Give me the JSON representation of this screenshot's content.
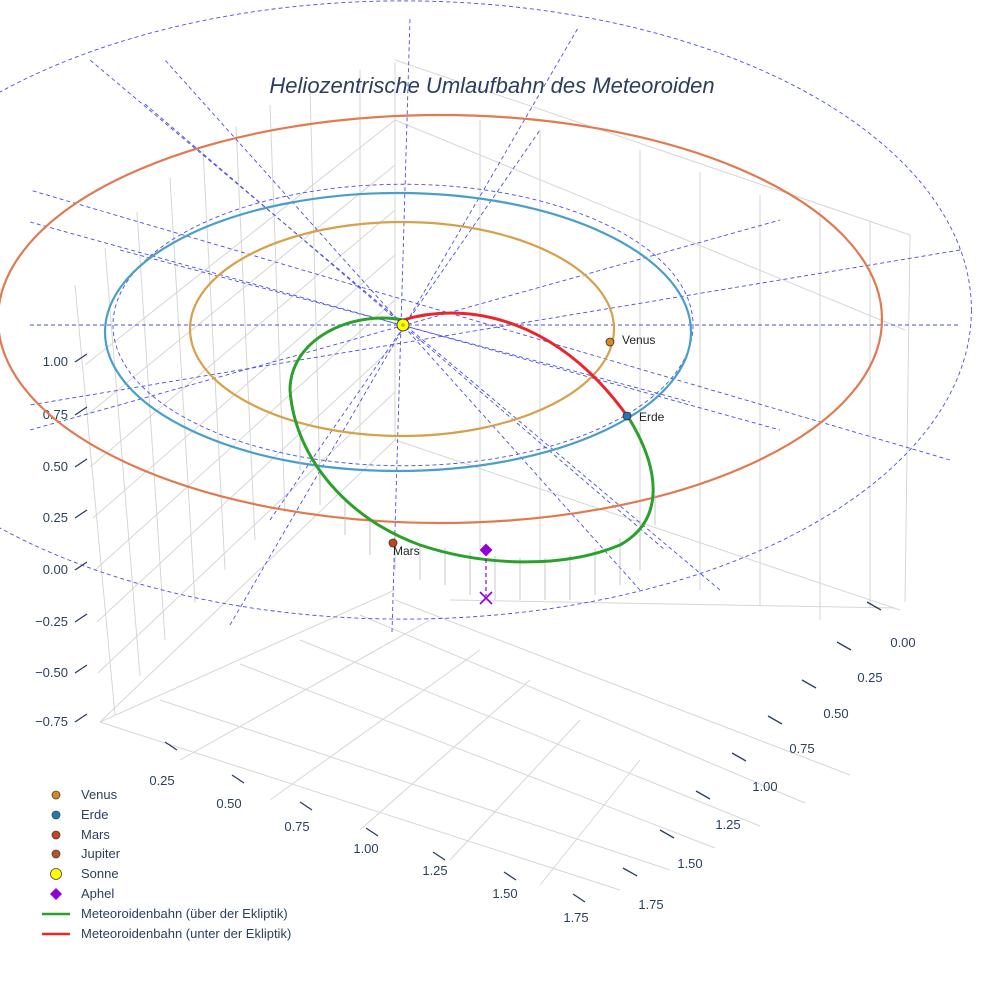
{
  "title": "Heliozentrische Umlaufbahn des Meteoroiden",
  "chart_data": {
    "type": "scatter3d",
    "title": "Heliozentrische Umlaufbahn des Meteoroiden",
    "axes": {
      "x": {
        "ticks": [
          0.25,
          0.5,
          0.75,
          1.0,
          1.25,
          1.5,
          1.75
        ],
        "tick_labels": [
          "0.25",
          "0.50",
          "0.75",
          "1.00",
          "1.25",
          "1.50",
          "1.75"
        ]
      },
      "y": {
        "ticks": [
          0.0,
          0.25,
          0.5,
          0.75,
          1.0,
          1.25,
          1.5,
          1.75
        ],
        "tick_labels": [
          "0.00",
          "0.25",
          "0.50",
          "0.75",
          "1.00",
          "1.25",
          "1.50",
          "1.75"
        ]
      },
      "z": {
        "ticks": [
          -0.75,
          -0.5,
          -0.25,
          0.0,
          0.25,
          0.5,
          0.75,
          1.0
        ],
        "tick_labels": [
          "−0.75",
          "−0.50",
          "−0.25",
          "0.00",
          "0.25",
          "0.50",
          "0.75",
          "1.00"
        ]
      }
    },
    "planet_orbits": [
      {
        "name": "Venus",
        "radius_au": 0.723,
        "color": "#d6a14a"
      },
      {
        "name": "Erde",
        "radius_au": 1.0,
        "color": "#4a9fc8"
      },
      {
        "name": "Mars",
        "radius_au": 1.524,
        "color": "#e07a50"
      }
    ],
    "planets": [
      {
        "name": "Venus",
        "label": "Venus",
        "angle_deg": 0,
        "color": "#d68a1e"
      },
      {
        "name": "Erde",
        "label": "Erde",
        "angle_deg": -37,
        "color": "#1f77b4"
      },
      {
        "name": "Mars",
        "label": "Mars",
        "angle_deg": -99,
        "color": "#c8451c"
      }
    ],
    "sun": {
      "name": "Sonne",
      "position": [
        0,
        0,
        0
      ],
      "color": "#ffff00"
    },
    "aphel": {
      "name": "Aphel",
      "color": "#9400d3"
    },
    "meteoroid_orbit": {
      "above_label": "Meteoroidenbahn (über der Ekliptik)",
      "below_label": "Meteoroidenbahn (unter der Ekliptik)",
      "above_color": "#2ca02c",
      "below_color": "#e8262b"
    },
    "ecliptic_grid": {
      "color": "#4a4ee0",
      "ring_radii_au": [
        1.0,
        2.0
      ]
    },
    "legend": [
      {
        "label": "Venus",
        "symbol": "circle",
        "color": "#d68a1e"
      },
      {
        "label": "Erde",
        "symbol": "circle",
        "color": "#1f77b4"
      },
      {
        "label": "Mars",
        "symbol": "circle",
        "color": "#c8451c"
      },
      {
        "label": "Jupiter",
        "symbol": "circle",
        "color": "#b5532a"
      },
      {
        "label": "Sonne",
        "symbol": "circle-large",
        "color": "#ffff00"
      },
      {
        "label": "Aphel",
        "symbol": "diamond",
        "color": "#9400d3"
      },
      {
        "label": "Meteoroidenbahn (über der Ekliptik)",
        "symbol": "line",
        "color": "#2ca02c"
      },
      {
        "label": "Meteoroidenbahn (unter der Ekliptik)",
        "symbol": "line",
        "color": "#e8262b"
      }
    ]
  }
}
